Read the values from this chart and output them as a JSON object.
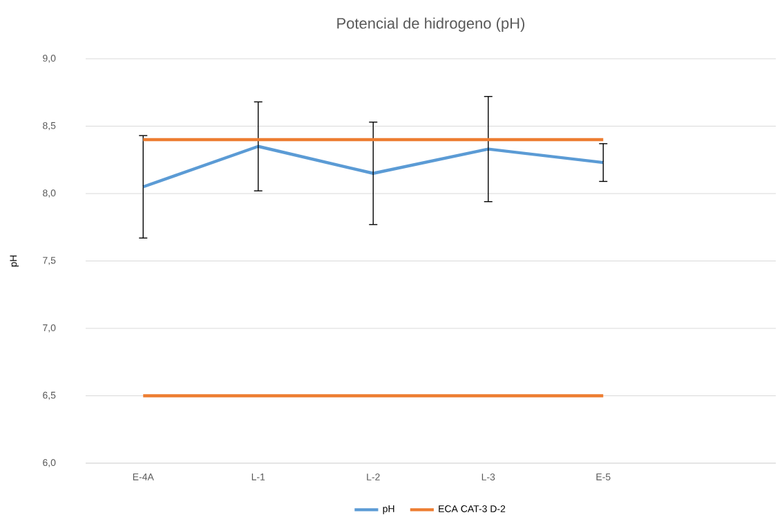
{
  "chart_data": {
    "type": "line",
    "title": "Potencial de hidrogeno (pH)",
    "ylabel": "pH",
    "categories": [
      "E-4A",
      "L-1",
      "L-2",
      "L-3",
      "E-5",
      null
    ],
    "ylim": [
      6,
      9
    ],
    "yticks": [
      {
        "value": 6,
        "label": "6,0"
      },
      {
        "value": 6.5,
        "label": "6,5"
      },
      {
        "value": 7,
        "label": "7,0"
      },
      {
        "value": 7.5,
        "label": "7,5"
      },
      {
        "value": 8,
        "label": "8,0"
      },
      {
        "value": 8.5,
        "label": "8,5"
      },
      {
        "value": 9,
        "label": "9,0"
      }
    ],
    "grid": "y",
    "legend": "bottom",
    "marker": "none",
    "line_style": "solid",
    "series": [
      {
        "name": "pH",
        "color": "#5b9bd5",
        "values": [
          8.05,
          8.35,
          8.15,
          8.33,
          8.23,
          null
        ],
        "errors": [
          0.38,
          0.33,
          0.38,
          0.39,
          0.14,
          null
        ]
      },
      {
        "name": "ECA CAT-3 D-2",
        "color": "#ed7d31",
        "values": [
          8.4,
          8.4,
          8.4,
          8.4,
          8.4,
          null
        ]
      },
      {
        "color": "#ed7d31",
        "values": [
          6.5,
          6.5,
          6.5,
          6.5,
          6.5,
          null
        ]
      }
    ]
  }
}
